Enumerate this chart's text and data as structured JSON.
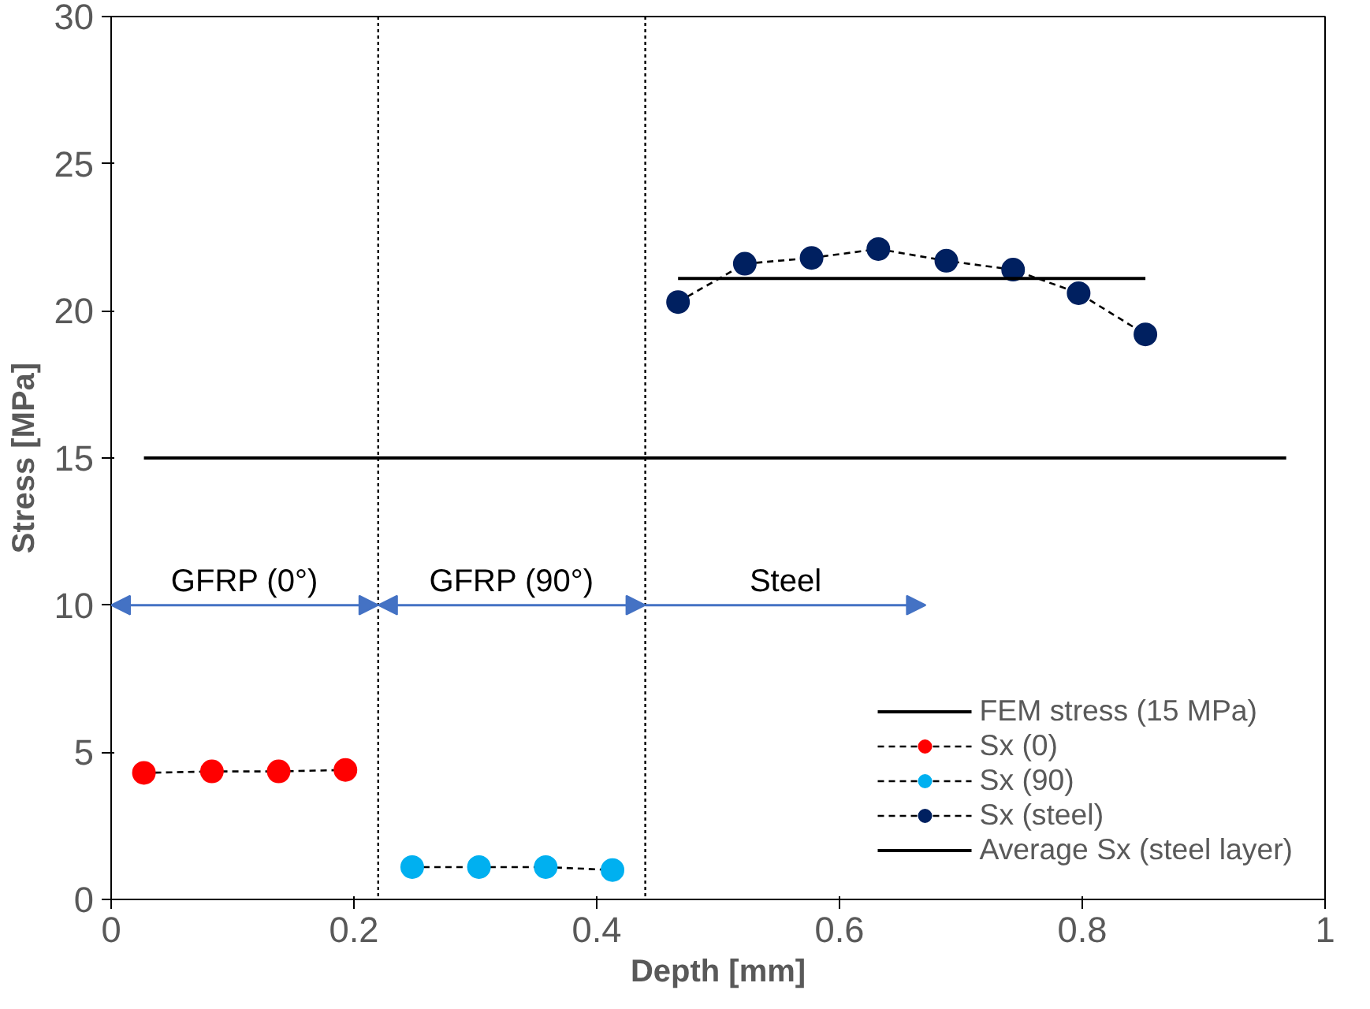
{
  "chart_data": {
    "type": "line",
    "xlabel": "Depth [mm]",
    "ylabel": "Stress [MPa]",
    "xlim": [
      0,
      1
    ],
    "xticks": [
      0,
      0.2,
      0.4,
      0.6,
      0.8,
      1
    ],
    "ylim": [
      0,
      30
    ],
    "yticks": [
      0,
      5,
      10,
      15,
      20,
      25,
      30
    ],
    "series": [
      {
        "name": "FEM stress (15 MPa)",
        "color": "#000000",
        "line_style": "solid",
        "marker": "none",
        "x": [
          0.027,
          0.968
        ],
        "values": [
          15,
          15
        ]
      },
      {
        "name": "Sx (0)",
        "color": "#ff0000",
        "line_style": "dashed",
        "marker": "circle",
        "x": [
          0.027,
          0.083,
          0.138,
          0.193
        ],
        "values": [
          4.3,
          4.35,
          4.35,
          4.4
        ]
      },
      {
        "name": "Sx (90)",
        "color": "#00b0f0",
        "line_style": "dashed",
        "marker": "circle",
        "x": [
          0.248,
          0.303,
          0.358,
          0.413
        ],
        "values": [
          1.1,
          1.1,
          1.1,
          1.0
        ]
      },
      {
        "name": "Sx (steel)",
        "color": "#002060",
        "line_style": "dashed",
        "marker": "circle",
        "x": [
          0.467,
          0.522,
          0.577,
          0.632,
          0.688,
          0.743,
          0.797,
          0.852
        ],
        "values": [
          20.3,
          21.6,
          21.8,
          22.1,
          21.7,
          21.4,
          20.6,
          19.2
        ]
      },
      {
        "name": "Average Sx (steel layer)",
        "color": "#000000",
        "line_style": "solid",
        "marker": "none",
        "x": [
          0.467,
          0.852
        ],
        "values": [
          21.1,
          21.1
        ]
      }
    ],
    "ref_lines": [
      {
        "axis": "x",
        "value": 0.22,
        "color": "#000000",
        "line_style": "dotted"
      },
      {
        "axis": "x",
        "value": 0.44,
        "color": "#000000",
        "line_style": "dotted"
      }
    ],
    "annotations": [
      "GFRP (0°)",
      "GFRP (90°)",
      "Steel"
    ],
    "legend": "bottom right",
    "grid": false
  }
}
